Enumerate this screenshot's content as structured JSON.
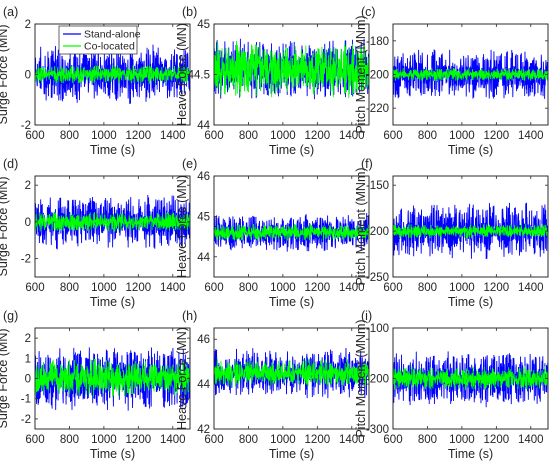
{
  "chart_data": [
    {
      "type": "line",
      "panel": "(a)",
      "xlabel": "Time (s)",
      "ylabel": "Surge Force (MN)",
      "xlim": [
        600,
        1500
      ],
      "ylim": [
        -2,
        2
      ],
      "xticks": [
        600,
        800,
        1000,
        1200,
        1400
      ],
      "yticks": [
        -2,
        0,
        2
      ],
      "legend": {
        "placement": "top-left",
        "entries": [
          "Stand-alone",
          "Co-located"
        ]
      },
      "series": [
        {
          "name": "Stand-alone",
          "color": "#0000ff",
          "center": 0,
          "amplitude": 1.7,
          "cycles": 30
        },
        {
          "name": "Co-located",
          "color": "#00ff00",
          "center": 0,
          "amplitude": 0.55,
          "cycles": 30
        }
      ]
    },
    {
      "type": "line",
      "panel": "(b)",
      "xlabel": "Time (s)",
      "ylabel": "Heave Force (MN)",
      "xlim": [
        600,
        1500
      ],
      "ylim": [
        44,
        45
      ],
      "xticks": [
        600,
        800,
        1000,
        1200,
        1400
      ],
      "yticks": [
        44,
        44.5,
        45
      ],
      "series": [
        {
          "name": "Stand-alone",
          "color": "#0000ff",
          "center": 44.55,
          "amplitude": 0.45,
          "cycles": 40
        },
        {
          "name": "Co-located",
          "color": "#00ff00",
          "center": 44.55,
          "amplitude": 0.4,
          "cycles": 40
        }
      ]
    },
    {
      "type": "line",
      "panel": "(c)",
      "xlabel": "Time (s)",
      "ylabel": "Pitch Moment (MNm)",
      "xlim": [
        600,
        1500
      ],
      "ylim": [
        -230,
        -170
      ],
      "xticks": [
        600,
        800,
        1000,
        1200,
        1400
      ],
      "yticks": [
        -220,
        -200,
        -180
      ],
      "series": [
        {
          "name": "Stand-alone",
          "color": "#0000ff",
          "center": -200,
          "amplitude": 22,
          "cycles": 30
        },
        {
          "name": "Co-located",
          "color": "#00ff00",
          "center": -200,
          "amplitude": 6,
          "cycles": 30
        }
      ]
    },
    {
      "type": "line",
      "panel": "(d)",
      "xlabel": "Time (s)",
      "ylabel": "Surge Force (MN)",
      "xlim": [
        600,
        1500
      ],
      "ylim": [
        -3,
        2.5
      ],
      "xticks": [
        600,
        800,
        1000,
        1200,
        1400
      ],
      "yticks": [
        -2,
        0,
        2
      ],
      "series": [
        {
          "name": "Stand-alone",
          "color": "#0000ff",
          "center": 0,
          "amplitude": 2.2,
          "cycles": 30
        },
        {
          "name": "Co-located",
          "color": "#00ff00",
          "center": 0,
          "amplitude": 0.8,
          "cycles": 30
        }
      ]
    },
    {
      "type": "line",
      "panel": "(e)",
      "xlabel": "Time (s)",
      "ylabel": "Heave Force (MN)",
      "xlim": [
        600,
        1500
      ],
      "ylim": [
        43.5,
        46
      ],
      "xticks": [
        600,
        800,
        1000,
        1200,
        1400
      ],
      "yticks": [
        44,
        45,
        46
      ],
      "series": [
        {
          "name": "Stand-alone",
          "color": "#0000ff",
          "center": 44.6,
          "amplitude": 0.7,
          "cycles": 30
        },
        {
          "name": "Co-located",
          "color": "#00ff00",
          "center": 44.6,
          "amplitude": 0.3,
          "cycles": 30
        }
      ]
    },
    {
      "type": "line",
      "panel": "(f)",
      "xlabel": "Time (s)",
      "ylabel": "Pitch Moment (MNm)",
      "xlim": [
        600,
        1500
      ],
      "ylim": [
        -250,
        -140
      ],
      "xticks": [
        600,
        800,
        1000,
        1200,
        1400
      ],
      "yticks": [
        -250,
        -200,
        -150
      ],
      "series": [
        {
          "name": "Stand-alone",
          "color": "#0000ff",
          "center": -200,
          "amplitude": 45,
          "cycles": 30
        },
        {
          "name": "Co-located",
          "color": "#00ff00",
          "center": -200,
          "amplitude": 12,
          "cycles": 30
        }
      ]
    },
    {
      "type": "line",
      "panel": "(g)",
      "xlabel": "Time (s)",
      "ylabel": "Surge Force (MN)",
      "xlim": [
        600,
        1500
      ],
      "ylim": [
        -2.5,
        2.5
      ],
      "xticks": [
        600,
        800,
        1000,
        1200,
        1400
      ],
      "yticks": [
        -2,
        -1,
        0,
        1,
        2
      ],
      "series": [
        {
          "name": "Stand-alone",
          "color": "#0000ff",
          "center": 0,
          "amplitude": 2.3,
          "cycles": 30
        },
        {
          "name": "Co-located",
          "color": "#00ff00",
          "center": 0,
          "amplitude": 1.4,
          "cycles": 30
        }
      ]
    },
    {
      "type": "line",
      "panel": "(h)",
      "xlabel": "Time (s)",
      "ylabel": "Heave Force (MN)",
      "xlim": [
        600,
        1500
      ],
      "ylim": [
        42,
        46.5
      ],
      "xticks": [
        600,
        800,
        1000,
        1200,
        1400
      ],
      "yticks": [
        42,
        44,
        46
      ],
      "series": [
        {
          "name": "Stand-alone",
          "color": "#0000ff",
          "center": 44.5,
          "amplitude": 1.6,
          "cycles": 30
        },
        {
          "name": "Co-located",
          "color": "#00ff00",
          "center": 44.5,
          "amplitude": 0.9,
          "cycles": 30
        }
      ]
    },
    {
      "type": "line",
      "panel": "(i)",
      "xlabel": "Time (s)",
      "ylabel": "Pitch Moment (MNm)",
      "xlim": [
        600,
        1500
      ],
      "ylim": [
        -300,
        -100
      ],
      "xticks": [
        600,
        800,
        1000,
        1200,
        1400
      ],
      "yticks": [
        -300,
        -200,
        -100
      ],
      "series": [
        {
          "name": "Stand-alone",
          "color": "#0000ff",
          "center": -200,
          "amplitude": 80,
          "cycles": 30
        },
        {
          "name": "Co-located",
          "color": "#00ff00",
          "center": -200,
          "amplitude": 35,
          "cycles": 30
        }
      ]
    }
  ]
}
